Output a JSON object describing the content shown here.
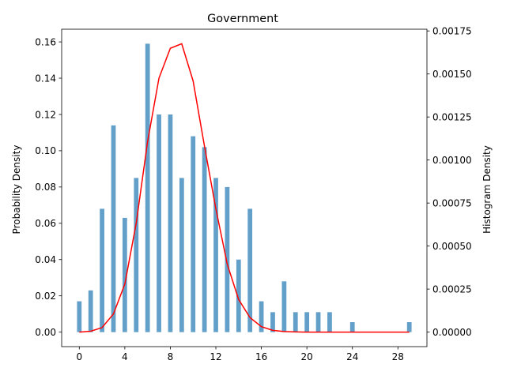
{
  "chart_data": {
    "type": "bar",
    "title": "Government",
    "xlabel": "",
    "ylabel_left": "Probability Density",
    "ylabel_right": "Histogram Density",
    "x_ticks": [
      0,
      4,
      8,
      12,
      16,
      20,
      24,
      28
    ],
    "y_left_ticks": [
      "0.00",
      "0.02",
      "0.04",
      "0.06",
      "0.08",
      "0.10",
      "0.12",
      "0.14",
      "0.16"
    ],
    "y_right_ticks": [
      "0.00000",
      "0.00025",
      "0.00050",
      "0.00075",
      "0.00100",
      "0.00125",
      "0.00150",
      "0.00175"
    ],
    "xlim": [
      -1.55,
      30.55
    ],
    "ylim_left": [
      -0.008,
      0.167
    ],
    "ylim_right": [
      -8.43e-05,
      0.00176
    ],
    "bar_color": "#1f77b4",
    "bar_alpha": 0.7,
    "line_color": "#ff0000",
    "grid": false,
    "legend": "none",
    "series": [
      {
        "type": "bar",
        "axis": "left",
        "x": [
          0,
          1,
          2,
          3,
          4,
          5,
          6,
          7,
          8,
          9,
          10,
          11,
          12,
          13,
          14,
          15,
          16,
          17,
          18,
          19,
          20,
          21,
          22,
          24,
          29
        ],
        "values": [
          0.017,
          0.023,
          0.068,
          0.114,
          0.063,
          0.085,
          0.159,
          0.12,
          0.12,
          0.085,
          0.108,
          0.102,
          0.085,
          0.08,
          0.04,
          0.068,
          0.017,
          0.011,
          0.028,
          0.011,
          0.011,
          0.011,
          0.011,
          0.0055,
          0.0055
        ]
      },
      {
        "type": "line",
        "axis": "left",
        "x": [
          0,
          1,
          2,
          3,
          4,
          5,
          6,
          7,
          8,
          9,
          10,
          11,
          12,
          13,
          14,
          15,
          16,
          17,
          18,
          19,
          20,
          21,
          22,
          23,
          24,
          25,
          26,
          27,
          28,
          29
        ],
        "values": [
          0.0,
          0.0005,
          0.0025,
          0.01,
          0.0265,
          0.06,
          0.105,
          0.14,
          0.1565,
          0.159,
          0.1385,
          0.1025,
          0.068,
          0.0375,
          0.018,
          0.008,
          0.003,
          0.001,
          0.0003,
          0.0001,
          0,
          0,
          0,
          0,
          0,
          0,
          0,
          0,
          0,
          0
        ]
      }
    ]
  }
}
